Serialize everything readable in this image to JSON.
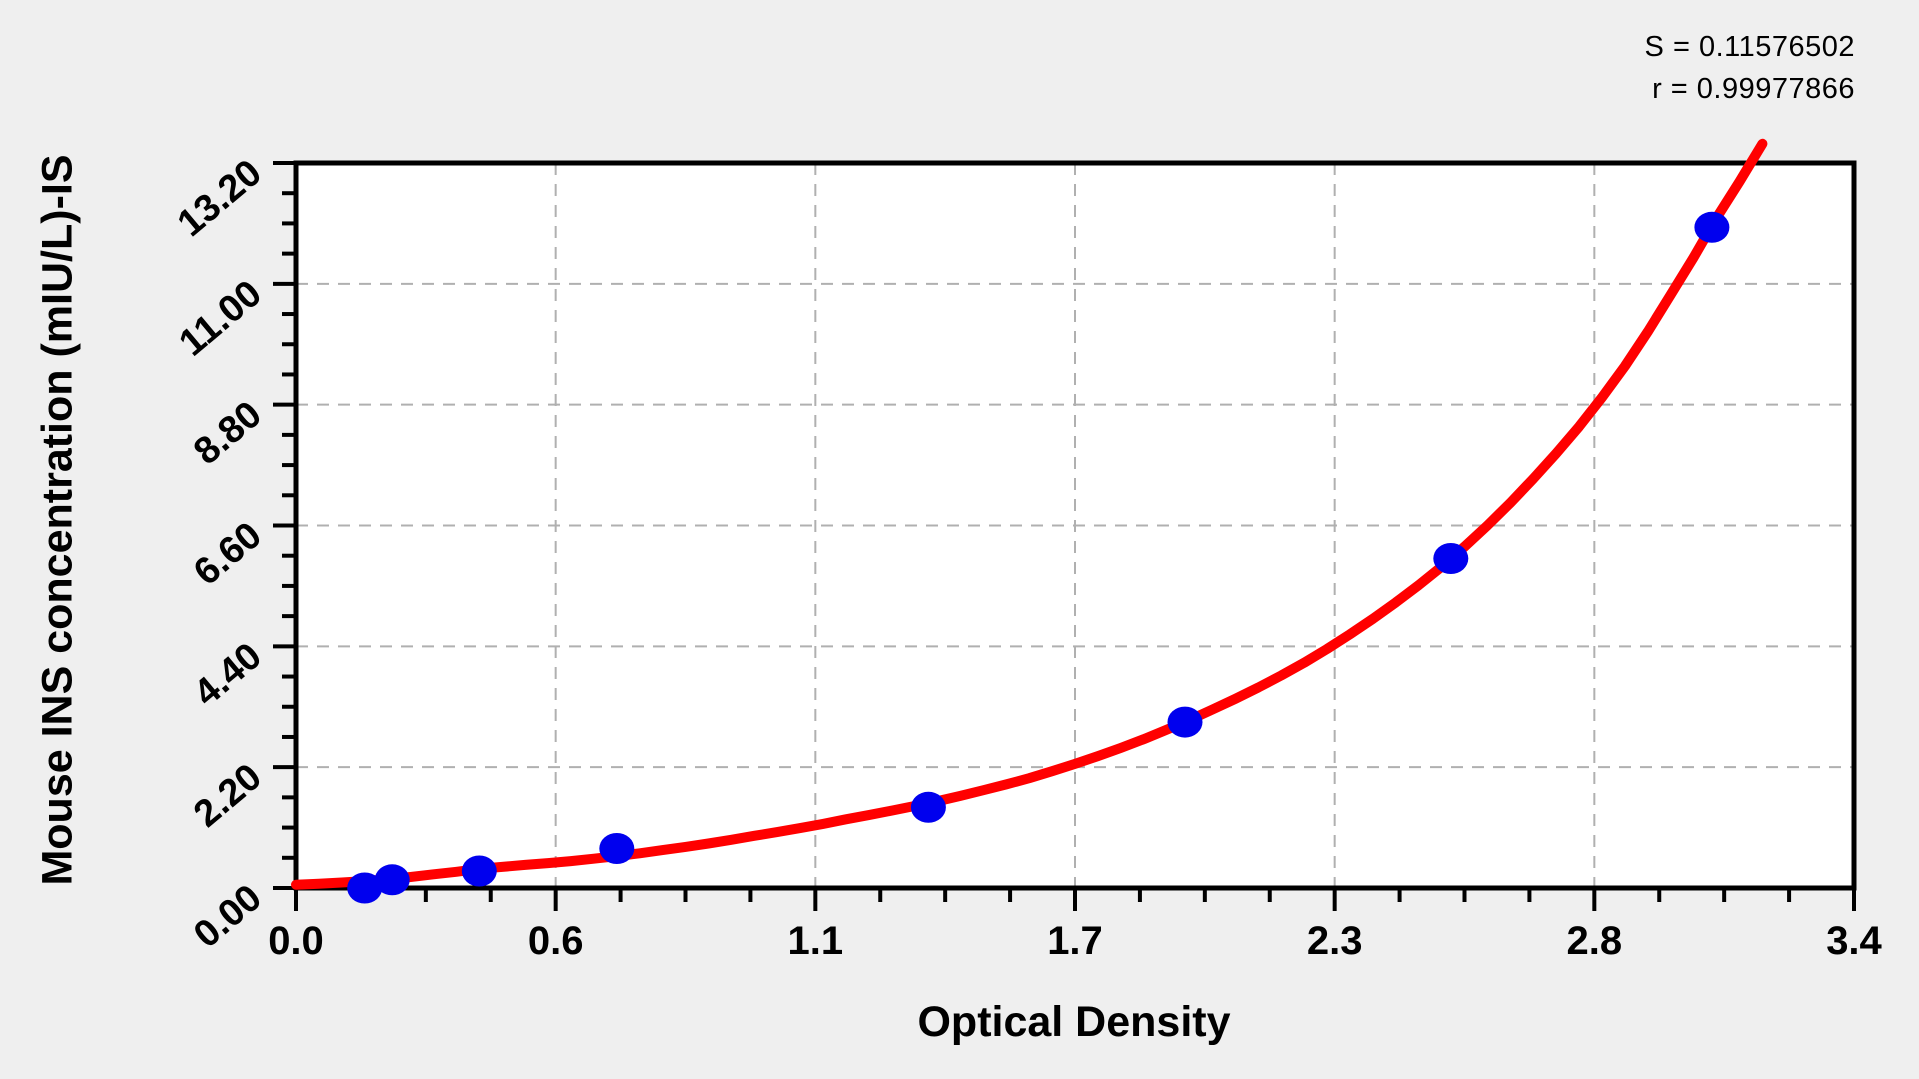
{
  "figure": {
    "x_title": "Optical Density",
    "y_title": "Mouse INS concentration (mIU/L)-IS",
    "stats": {
      "s_line": "S = 0.11576502",
      "r_line": "r = 0.99977866"
    }
  },
  "chart_data": {
    "type": "scatter",
    "title": "",
    "xlabel": "Optical Density",
    "ylabel": "Mouse INS concentration (mIU/L)-IS",
    "legend_position": "none",
    "grid": "dashed-major",
    "x_axis": {
      "min": 0.0,
      "max": 3.4,
      "tick_labels": [
        "0.0",
        "0.6",
        "1.1",
        "1.7",
        "2.3",
        "2.8",
        "3.4"
      ],
      "minor_per_interval": 3
    },
    "y_axis": {
      "min": 0.0,
      "max": 13.2,
      "tick_labels": [
        "0.00",
        "2.20",
        "4.40",
        "6.60",
        "8.80",
        "11.00",
        "13.20"
      ],
      "minor_per_interval": 3
    },
    "fit_stats": {
      "S": 0.11576502,
      "r": 0.99977866
    },
    "points": [
      [
        0.15,
        0.0
      ],
      [
        0.21,
        0.15
      ],
      [
        0.4,
        0.31
      ],
      [
        0.7,
        0.72
      ],
      [
        1.38,
        1.47
      ],
      [
        1.94,
        3.02
      ],
      [
        2.52,
        6.0
      ],
      [
        3.09,
        12.03
      ]
    ],
    "curve_samples": [
      [
        0.0,
        0.06
      ],
      [
        0.1,
        0.1
      ],
      [
        0.2,
        0.16
      ],
      [
        0.3,
        0.25
      ],
      [
        0.4,
        0.35
      ],
      [
        0.5,
        0.42
      ],
      [
        0.6,
        0.49
      ],
      [
        0.7,
        0.58
      ],
      [
        0.8,
        0.69
      ],
      [
        0.9,
        0.81
      ],
      [
        1.0,
        0.95
      ],
      [
        1.1,
        1.09
      ],
      [
        1.2,
        1.25
      ],
      [
        1.3,
        1.41
      ],
      [
        1.4,
        1.58
      ],
      [
        1.5,
        1.78
      ],
      [
        1.6,
        2.0
      ],
      [
        1.7,
        2.26
      ],
      [
        1.8,
        2.55
      ],
      [
        1.9,
        2.88
      ],
      [
        2.0,
        3.25
      ],
      [
        2.1,
        3.65
      ],
      [
        2.2,
        4.1
      ],
      [
        2.3,
        4.62
      ],
      [
        2.4,
        5.2
      ],
      [
        2.5,
        5.85
      ],
      [
        2.6,
        6.6
      ],
      [
        2.7,
        7.45
      ],
      [
        2.8,
        8.4
      ],
      [
        2.9,
        9.5
      ],
      [
        3.0,
        10.8
      ],
      [
        3.1,
        12.2
      ],
      [
        3.2,
        13.55
      ]
    ],
    "colors": {
      "curve": "#ff0000",
      "points": "#0000ee",
      "grid": "#b0b0b0",
      "axis": "#000000",
      "plot_background": "#ffffff",
      "page_background": "#efefef"
    }
  }
}
